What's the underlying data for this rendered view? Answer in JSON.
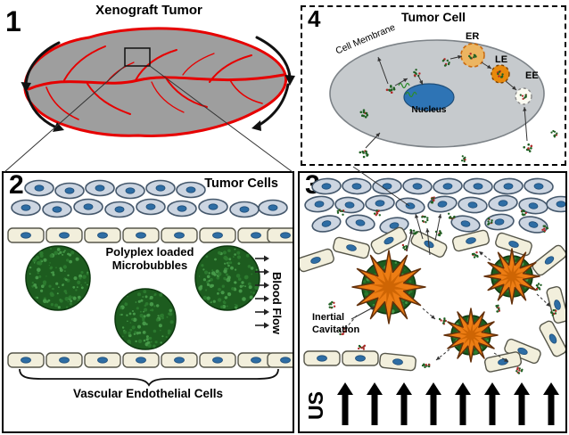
{
  "colors": {
    "vessel_red": "#e60000",
    "tumor_gray": "#9e9e9e",
    "tumor_cell_fill": "#ccd5e1",
    "nucleus_blue": "#2e6da4",
    "endothelial_cream": "#f2efdc",
    "microbubble_green": "#1d5c1f",
    "star_orange": "#ed7d14"
  },
  "panel1": {
    "number": "1",
    "title": "Xenograft Tumor"
  },
  "panel2": {
    "number": "2",
    "title": "Tumor Cells",
    "microbubble_label_line1": "Polyplex loaded",
    "microbubble_label_line2": "Microbubbles",
    "blood_flow_label": "Blood Flow",
    "endothelial_label": "Vascular Endothelial Cells"
  },
  "panel3": {
    "number": "3",
    "cavitation_label_line1": "Inertial",
    "cavitation_label_line2": "Cavitation",
    "ultrasound_label": "US"
  },
  "panel4": {
    "number": "4",
    "title": "Tumor Cell",
    "membrane_label": "Cell Membrane",
    "organelle_er": "ER",
    "organelle_le": "LE",
    "organelle_ee": "EE",
    "nucleus_label": "Nucleus"
  }
}
